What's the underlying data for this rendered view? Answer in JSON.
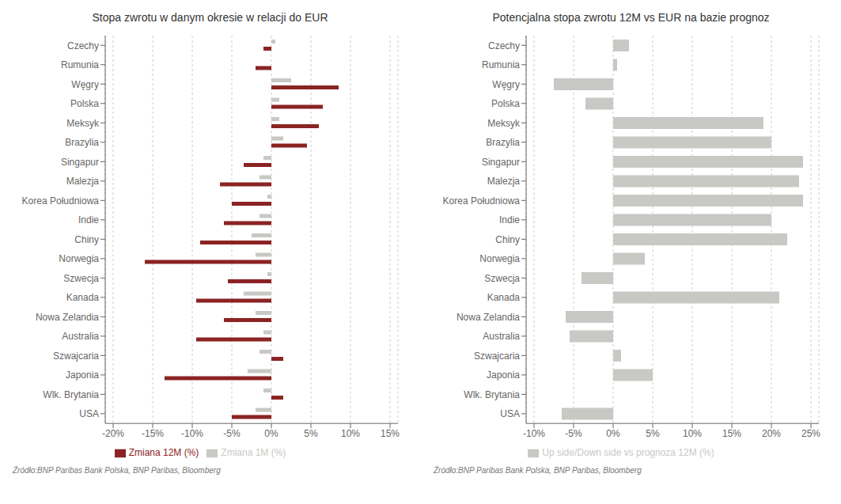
{
  "chart_data": [
    {
      "type": "bar",
      "title": "Stopa zwrotu w danym okresie w relacji do EUR",
      "orientation": "horizontal",
      "categories": [
        "Czechy",
        "Rumunia",
        "Węgry",
        "Polska",
        "Meksyk",
        "Brazylia",
        "Singapur",
        "Malezja",
        "Korea Południowa",
        "Indie",
        "Chiny",
        "Norwegia",
        "Szwecja",
        "Kanada",
        "Nowa Zelandia",
        "Australia",
        "Szwajcaria",
        "Japonia",
        "Wlk. Brytania",
        "USA"
      ],
      "series": [
        {
          "name": "Zmiana 1M (%)",
          "color": "#c8c8c4",
          "values": [
            0.5,
            0.0,
            2.5,
            1.0,
            1.0,
            1.5,
            -1.0,
            -1.5,
            -0.5,
            -1.5,
            -2.5,
            -2.0,
            -0.5,
            -3.5,
            -2.0,
            -1.0,
            -1.5,
            -3.0,
            -1.0,
            -2.0
          ]
        },
        {
          "name": "Zmiana 12M (%)",
          "color": "#8b2323",
          "values": [
            -1.0,
            -2.0,
            8.5,
            6.5,
            6.0,
            4.5,
            -3.5,
            -6.5,
            -5.0,
            -6.0,
            -9.0,
            -16.0,
            -5.5,
            -9.5,
            -6.0,
            -9.5,
            1.5,
            -13.5,
            1.5,
            -5.0
          ]
        }
      ],
      "xlim": [
        -21,
        16
      ],
      "xticks": [
        {
          "value": -20,
          "label": "-20%"
        },
        {
          "value": -15,
          "label": "-15%"
        },
        {
          "value": -10,
          "label": "-10%"
        },
        {
          "value": -5,
          "label": "-5%"
        },
        {
          "value": 0,
          "label": "0%"
        },
        {
          "value": 5,
          "label": "5%"
        },
        {
          "value": 10,
          "label": "10%"
        },
        {
          "value": 15,
          "label": "15%"
        }
      ],
      "grid": true,
      "legend": "bottom",
      "annotations": [
        "Źródło:BNP Paribas Bank Polska, BNP Paribas, Bloomberg"
      ]
    },
    {
      "type": "bar",
      "title": "Potencjalna stopa zwrotu 12M vs EUR na bazie prognoz",
      "orientation": "horizontal",
      "categories": [
        "Czechy",
        "Rumunia",
        "Węgry",
        "Polska",
        "Meksyk",
        "Brazylia",
        "Singapur",
        "Malezja",
        "Korea Południowa",
        "Indie",
        "Chiny",
        "Norwegia",
        "Szwecja",
        "Kanada",
        "Nowa Zelandia",
        "Australia",
        "Szwajcaria",
        "Japonia",
        "Wlk. Brytania",
        "USA"
      ],
      "series": [
        {
          "name": "Up side/Down side vs prognoza 12M (%)",
          "color": "#c8c8c4",
          "values": [
            2.0,
            0.5,
            -7.5,
            -3.5,
            19.0,
            20.0,
            24.0,
            23.5,
            24.0,
            20.0,
            22.0,
            4.0,
            -4.0,
            21.0,
            -6.0,
            -5.5,
            1.0,
            5.0,
            0.0,
            -6.5
          ]
        }
      ],
      "xlim": [
        -11,
        26
      ],
      "xticks": [
        {
          "value": -10,
          "label": "-10%"
        },
        {
          "value": -5,
          "label": "-5%"
        },
        {
          "value": 0,
          "label": "0%"
        },
        {
          "value": 5,
          "label": "5%"
        },
        {
          "value": 10,
          "label": "10%"
        },
        {
          "value": 15,
          "label": "15%"
        },
        {
          "value": 20,
          "label": "20%"
        },
        {
          "value": 25,
          "label": "25%"
        }
      ],
      "grid": true,
      "legend": "bottom",
      "annotations": [
        "Źródło:BNP Paribas Bank Polska, BNP Paribas, Bloomberg"
      ]
    }
  ]
}
